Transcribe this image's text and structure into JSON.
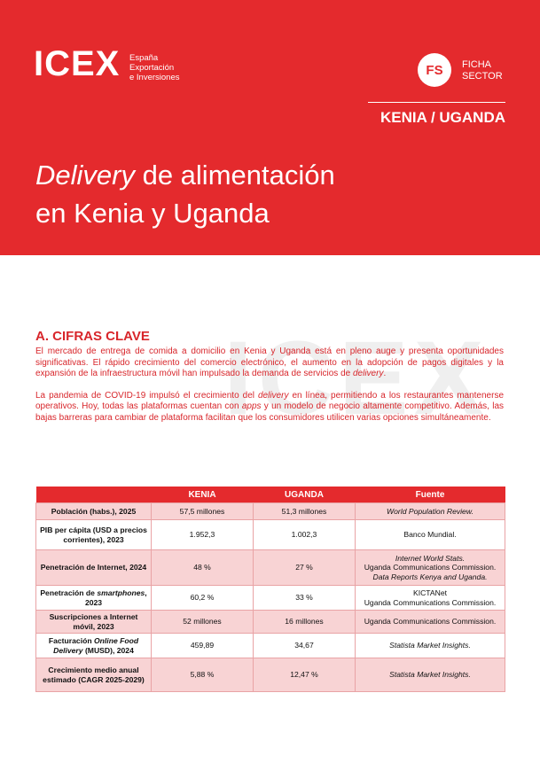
{
  "header": {
    "logo": "ICEX",
    "logo_sub": [
      "España",
      "Exportación",
      "e Inversiones"
    ],
    "badge": "FS",
    "badge_text": [
      "FICHA",
      "SECTOR"
    ],
    "country": "KENIA / UGANDA",
    "title": [
      [
        {
          "italic": "Delivery"
        },
        " de alimentación"
      ],
      [
        "en Kenia y Uganda"
      ]
    ]
  },
  "watermark": "ICEX",
  "section": {
    "heading": "A. CIFRAS CLAVE",
    "paragraphs": [
      [
        "El mercado de entrega de comida a domicilio en Kenia y Uganda está en pleno auge y presenta oportunidades significativas. El rápido crecimiento del comercio electrónico, el aumento en la adopción de pagos digitales y la expansión de la infraestructura móvil han impulsado la demanda de servicios de ",
        {
          "italic": "delivery"
        },
        "."
      ],
      [
        "La pandemia de COVID-19 impulsó el crecimiento del ",
        {
          "italic": "delivery"
        },
        " en línea, permitiendo a los restaurantes mantenerse operativos. Hoy, todas las plataformas cuentan con ",
        {
          "italic": "apps"
        },
        " y un modelo de negocio altamente competitivo. Además, las bajas barreras para cambiar de plataforma facilitan que los consumidores utilicen varias opciones simultáneamente."
      ]
    ]
  },
  "table": {
    "columns": [
      "KENIA",
      "UGANDA",
      "Fuente"
    ],
    "rows": [
      {
        "label": [
          "Población (habs.), 2025"
        ],
        "kenia": "57,5 millones",
        "uganda": "51,3 millones",
        "source": [
          {
            "italic": "World Population Review."
          }
        ]
      },
      {
        "label": [
          "PIB per cápita (USD a precios corrientes), 2023"
        ],
        "kenia": "1.952,3",
        "uganda": "1.002,3",
        "source": [
          "Banco Mundial."
        ]
      },
      {
        "label": [
          "Penetración de Internet, 2024"
        ],
        "kenia": "48 %",
        "uganda": "27 %",
        "source": [
          {
            "italic": "Internet World Stats."
          },
          "Uganda Communications Commission.",
          {
            "italic": "Data Reports Kenya and Uganda."
          }
        ]
      },
      {
        "label": [
          "Penetración de ",
          {
            "italic": "smartphones"
          },
          ", 2023"
        ],
        "kenia": "60,2 %",
        "uganda": "33 %",
        "source": [
          "KICTANet",
          "Uganda Communications Commission."
        ]
      },
      {
        "label": [
          "Suscripciones a Internet móvil, 2023"
        ],
        "kenia": "52 millones",
        "uganda": "16 millones",
        "source": [
          "Uganda Communications Commission."
        ]
      },
      {
        "label": [
          "Facturación ",
          {
            "italic": "Online Food Delivery"
          },
          " (MUSD), 2024"
        ],
        "kenia": "459,89",
        "uganda": "34,67",
        "source": [
          {
            "italic": "Statista Market Insights."
          }
        ]
      },
      {
        "label": [
          "Crecimiento medio anual estimado (CAGR 2025-2029)"
        ],
        "kenia": "5,88 %",
        "uganda": "12,47 %",
        "source": [
          {
            "italic": "Statista Market Insights."
          }
        ]
      }
    ]
  }
}
